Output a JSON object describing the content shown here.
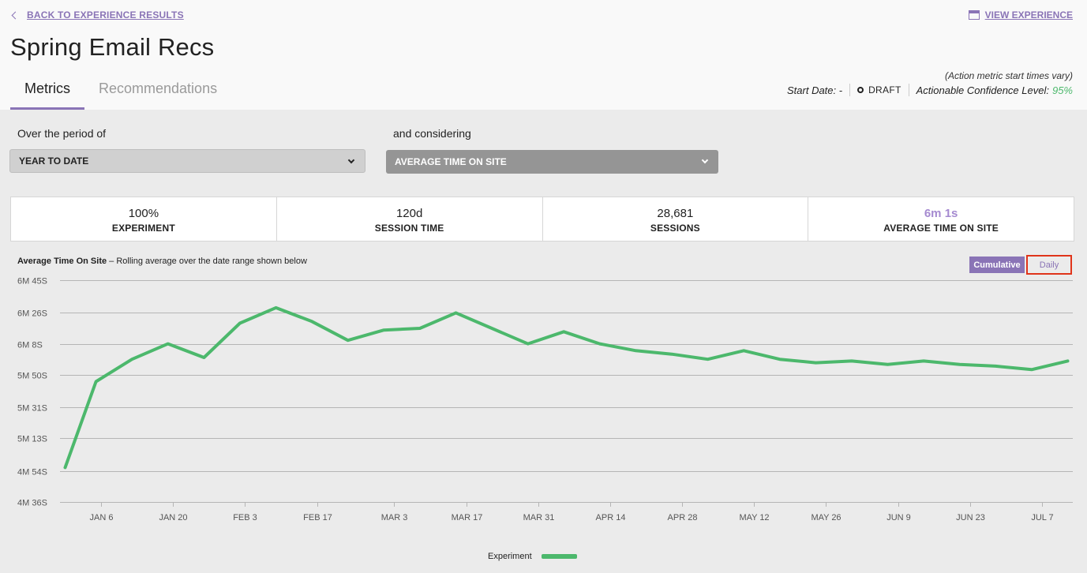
{
  "header": {
    "back_label": "BACK TO EXPERIENCE RESULTS",
    "view_label": "VIEW EXPERIENCE",
    "title": "Spring Email Recs"
  },
  "tabs": [
    {
      "label": "Metrics",
      "active": true
    },
    {
      "label": "Recommendations",
      "active": false
    }
  ],
  "status": {
    "note": "(Action metric start times vary)",
    "start_label": "Start Date: -",
    "draft_label": "DRAFT",
    "confidence_label": "Actionable Confidence Level:",
    "confidence_value": "95%"
  },
  "filters": {
    "period_label": "Over the period of",
    "period_value": "YEAR TO DATE",
    "metric_label": "and considering",
    "metric_value": "AVERAGE TIME ON SITE"
  },
  "kpis": [
    {
      "value": "100%",
      "label": "EXPERIMENT",
      "accent": false
    },
    {
      "value": "120d",
      "label": "SESSION TIME",
      "accent": false
    },
    {
      "value": "28,681",
      "label": "SESSIONS",
      "accent": false
    },
    {
      "value": "6m 1s",
      "label": "AVERAGE TIME ON SITE",
      "accent": true
    }
  ],
  "chart": {
    "title_bold": "Average Time On Site",
    "title_rest": " – Rolling average over the date range shown below",
    "toggle_cumulative": "Cumulative",
    "toggle_daily": "Daily",
    "legend_label": "Experiment",
    "line_color": "#4cb86c"
  },
  "chart_data": {
    "type": "line",
    "y_tick_labels": [
      "6M 45S",
      "6M 26S",
      "6M 8S",
      "5M 50S",
      "5M 31S",
      "5M 13S",
      "4M 54S",
      "4M 36S"
    ],
    "y_tick_seconds": [
      405,
      386,
      368,
      350,
      331,
      313,
      294,
      276
    ],
    "ylim": [
      276,
      405
    ],
    "x_tick_labels": [
      "JAN 6",
      "JAN 20",
      "FEB 3",
      "FEB 17",
      "MAR 3",
      "MAR 17",
      "MAR 31",
      "APR 14",
      "APR 28",
      "MAY 12",
      "MAY 26",
      "JUN 9",
      "JUN 23",
      "JUL 7"
    ],
    "x_tick_dates": [
      "2024-01-06",
      "2024-01-20",
      "2024-02-03",
      "2024-02-17",
      "2024-03-03",
      "2024-03-17",
      "2024-03-31",
      "2024-04-14",
      "2024-04-28",
      "2024-05-12",
      "2024-05-26",
      "2024-06-09",
      "2024-06-23",
      "2024-07-07"
    ],
    "xlim": [
      "2023-12-29",
      "2024-07-13"
    ],
    "grid": true,
    "legend": "bottom-center",
    "series": [
      {
        "name": "Experiment",
        "x": [
          "2023-12-30",
          "2024-01-05",
          "2024-01-12",
          "2024-01-19",
          "2024-01-26",
          "2024-02-02",
          "2024-02-09",
          "2024-02-16",
          "2024-02-23",
          "2024-03-01",
          "2024-03-08",
          "2024-03-15",
          "2024-03-22",
          "2024-03-29",
          "2024-04-05",
          "2024-04-12",
          "2024-04-19",
          "2024-04-26",
          "2024-05-03",
          "2024-05-10",
          "2024-05-17",
          "2024-05-24",
          "2024-05-31",
          "2024-06-07",
          "2024-06-14",
          "2024-06-21",
          "2024-06-28",
          "2024-07-05",
          "2024-07-12"
        ],
        "values": [
          296,
          346,
          359,
          368,
          360,
          380,
          389,
          381,
          370,
          376,
          377,
          386,
          377,
          368,
          375,
          368,
          364,
          362,
          359,
          364,
          359,
          357,
          358,
          356,
          358,
          356,
          355,
          353,
          358
        ]
      }
    ]
  }
}
